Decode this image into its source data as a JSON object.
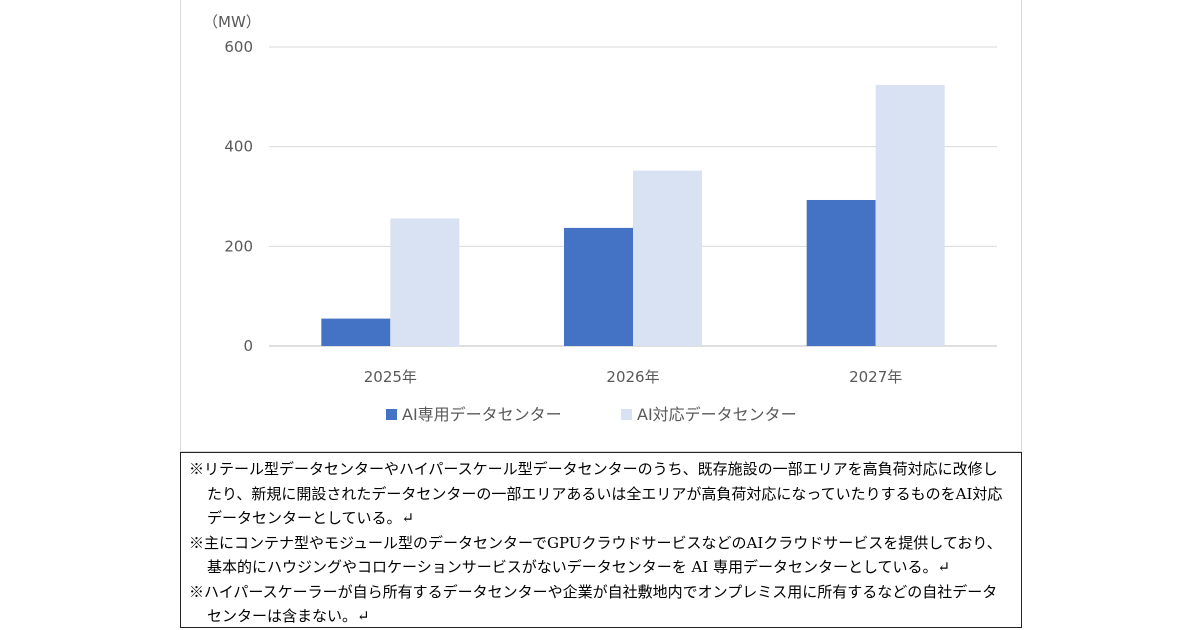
{
  "chart_data": {
    "type": "bar",
    "unit_label": "（MW）",
    "categories": [
      "2025年",
      "2026年",
      "2027年"
    ],
    "series": [
      {
        "name": "AI専用データセンター",
        "color": "#4472c4",
        "values": [
          55,
          237,
          293
        ]
      },
      {
        "name": "AI対応データセンター",
        "color": "#d9e2f3",
        "values": [
          256,
          352,
          524
        ]
      }
    ],
    "yticks": [
      0,
      200,
      400,
      600
    ],
    "ylim": [
      0,
      600
    ],
    "grid": true,
    "legend_position": "bottom"
  },
  "notes": [
    "※リテール型データセンターやハイパースケール型データセンターのうち、既存施設の一部エリアを高負荷対応に改修したり、新規に開設されたデータセンターの一部エリアあるいは全エリアが高負荷対応になっていたりするものをAI対応データセンターとしている。↵",
    "※主にコンテナ型やモジュール型のデータセンターでGPUクラウドサービスなどのAIクラウドサービスを提供しており、基本的にハウジングやコロケーションサービスがないデータセンターを AI 専用データセンターとしている。↵",
    "※ハイパースケーラーが自ら所有するデータセンターや企業が自社敷地内でオンプレミス用に所有するなどの自社データセンターは含まない。↵"
  ]
}
